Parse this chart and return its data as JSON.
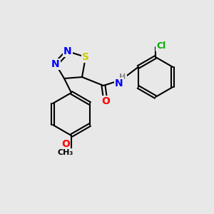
{
  "bg_color": "#e8e8e8",
  "bond_color": "#000000",
  "bond_lw": 1.5,
  "atom_colors": {
    "N": "#0000ff",
    "S": "#cccc00",
    "O": "#ff0000",
    "Cl": "#00aa00",
    "C": "#000000",
    "H": "#888888"
  },
  "font_size": 9,
  "font_size_small": 8
}
